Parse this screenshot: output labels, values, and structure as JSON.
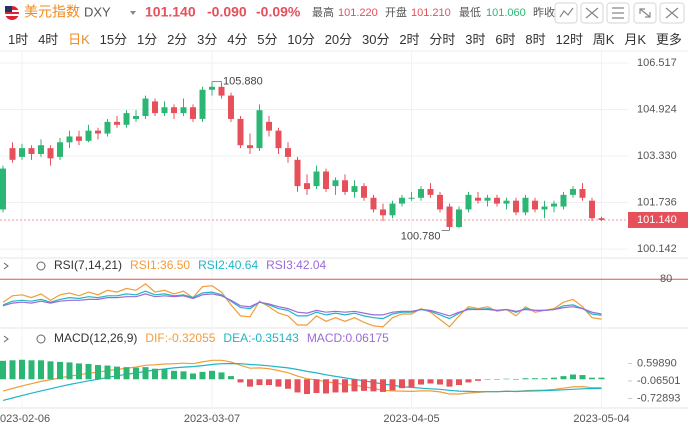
{
  "header": {
    "name": "美元指数",
    "symbol": "DXY",
    "price": "101.140",
    "change": "-0.090",
    "change_pct": "-0.09%",
    "high_label": "最高",
    "high": "101.220",
    "open_label": "开盘",
    "open": "101.210",
    "low_label": "最低",
    "low": "101.060",
    "prev_close_label": "昨收"
  },
  "toolbar": {
    "periods": [
      "1时",
      "4时",
      "日K",
      "15分",
      "1分",
      "2分",
      "3分",
      "4分",
      "5分",
      "10分",
      "20分",
      "30分",
      "2时",
      "分时",
      "3时",
      "6时",
      "8时",
      "12时",
      "周K",
      "月K"
    ],
    "selected": "日K",
    "more": "更多"
  },
  "chart_data": [
    {
      "type": "candlestick",
      "categories": [
        null,
        null,
        "2023-02-06",
        null,
        null,
        null,
        null,
        null,
        null,
        null,
        null,
        null,
        null,
        null,
        null,
        null,
        null,
        null,
        null,
        null,
        null,
        null,
        "2023-03-07",
        null,
        null,
        null,
        null,
        null,
        null,
        null,
        null,
        null,
        null,
        null,
        null,
        null,
        null,
        null,
        null,
        null,
        null,
        null,
        null,
        "2023-04-05",
        null,
        null,
        null,
        null,
        null,
        null,
        null,
        null,
        null,
        null,
        null,
        null,
        null,
        null,
        null,
        null,
        null,
        null,
        null,
        "2023-05-04"
      ],
      "open": [
        101.5,
        103.6,
        103.3,
        103.6,
        103.4,
        103.6,
        103.3,
        103.8,
        104.0,
        103.85,
        104.2,
        104.1,
        104.5,
        104.4,
        104.6,
        104.7,
        105.2,
        104.8,
        105.0,
        104.8,
        105.0,
        104.6,
        105.6,
        105.7,
        105.4,
        104.6,
        103.7,
        103.6,
        104.5,
        104.2,
        103.6,
        103.2,
        102.4,
        102.3,
        102.8,
        102.3,
        102.5,
        102.1,
        102.3,
        101.9,
        101.5,
        101.3,
        101.7,
        101.9,
        101.9,
        102.2,
        102.0,
        101.6,
        100.9,
        101.5,
        101.9,
        101.8,
        101.9,
        101.7,
        101.8,
        101.4,
        101.8,
        101.5,
        101.6,
        101.6,
        102.0,
        102.2,
        101.8,
        101.2
      ],
      "high": [
        103.0,
        103.8,
        103.75,
        103.7,
        103.9,
        103.7,
        103.95,
        104.2,
        104.2,
        104.4,
        104.3,
        104.6,
        104.7,
        104.9,
        104.9,
        105.4,
        105.3,
        105.2,
        105.1,
        105.3,
        105.1,
        105.7,
        105.88,
        105.85,
        105.5,
        104.7,
        104.1,
        105.1,
        104.7,
        104.3,
        103.8,
        103.3,
        102.7,
        103.0,
        102.9,
        102.6,
        102.7,
        102.5,
        102.4,
        102.0,
        101.7,
        101.8,
        102.0,
        102.1,
        102.3,
        102.4,
        102.1,
        101.7,
        101.6,
        102.1,
        102.1,
        102.0,
        102.0,
        101.9,
        101.9,
        102.0,
        101.9,
        101.8,
        101.8,
        102.1,
        102.3,
        102.4,
        101.9,
        101.25
      ],
      "low": [
        101.4,
        103.1,
        103.2,
        103.2,
        103.3,
        103.0,
        103.2,
        103.6,
        103.7,
        103.8,
        103.9,
        104.0,
        104.3,
        104.3,
        104.5,
        104.6,
        104.7,
        104.7,
        104.6,
        104.7,
        104.5,
        104.5,
        105.4,
        105.3,
        104.5,
        103.6,
        103.4,
        103.5,
        104.0,
        103.4,
        103.1,
        102.1,
        102.0,
        102.2,
        102.1,
        102.0,
        102.0,
        101.9,
        101.8,
        101.4,
        101.1,
        101.2,
        101.6,
        101.8,
        101.8,
        101.9,
        101.4,
        100.78,
        100.85,
        101.4,
        101.7,
        101.6,
        101.6,
        101.5,
        101.3,
        101.3,
        101.4,
        101.2,
        101.4,
        101.5,
        101.9,
        101.8,
        101.1,
        101.1
      ],
      "close": [
        102.9,
        103.2,
        103.6,
        103.4,
        103.7,
        103.25,
        103.8,
        104.0,
        103.85,
        104.2,
        104.1,
        104.5,
        104.4,
        104.8,
        104.7,
        105.3,
        104.8,
        105.0,
        104.8,
        105.0,
        104.6,
        105.6,
        105.7,
        105.4,
        104.6,
        103.7,
        103.6,
        104.9,
        104.2,
        103.6,
        103.3,
        102.3,
        102.2,
        102.8,
        102.2,
        102.5,
        102.1,
        102.3,
        101.9,
        101.5,
        101.3,
        101.7,
        101.9,
        101.9,
        102.2,
        102.0,
        101.5,
        100.9,
        101.5,
        102.0,
        101.8,
        101.9,
        101.7,
        101.8,
        101.4,
        101.9,
        101.5,
        101.6,
        101.7,
        102.0,
        102.2,
        101.9,
        101.2,
        101.14
      ],
      "up_color": "#2bb673",
      "down_color": "#e5505a",
      "ylim": [
        99.94,
        106.79
      ],
      "yticks": [
        106.517,
        104.924,
        {
          "value": 103.33,
          "label": "103.330"
        },
        101.736,
        100.142
      ],
      "annotations": [
        {
          "value": 105.88,
          "label": "105.880"
        },
        {
          "value": 100.78,
          "label": "100.780"
        },
        {
          "value": 101.14,
          "label": "101.140"
        }
      ],
      "grid": true
    },
    {
      "type": "line",
      "title": "RSI(7,14,21)",
      "series": [
        {
          "name": "RSI1:36.50",
          "color": "#f39c39",
          "values": [
            55,
            62,
            63,
            60,
            64,
            57,
            63,
            65,
            62,
            66,
            63,
            68,
            66,
            70,
            68,
            75,
            66,
            68,
            64,
            67,
            60,
            72,
            73,
            66,
            52,
            40,
            39,
            56,
            50,
            43,
            40,
            30,
            30,
            40,
            34,
            38,
            34,
            38,
            33,
            29,
            28,
            38,
            42,
            42,
            48,
            44,
            36,
            28,
            40,
            50,
            48,
            50,
            45,
            47,
            40,
            50,
            44,
            46,
            48,
            55,
            58,
            50,
            38,
            36.5
          ]
        },
        {
          "name": "RSI2:40.64",
          "color": "#1fb5c4",
          "values": [
            52,
            56,
            57,
            56,
            58,
            55,
            58,
            60,
            59,
            61,
            60,
            62,
            62,
            64,
            63,
            67,
            63,
            64,
            62,
            63,
            60,
            65,
            66,
            63,
            56,
            49,
            48,
            55,
            52,
            48,
            46,
            40,
            40,
            44,
            41,
            43,
            41,
            43,
            40,
            38,
            37,
            42,
            44,
            44,
            47,
            45,
            41,
            37,
            43,
            48,
            47,
            48,
            46,
            47,
            44,
            48,
            46,
            46,
            47,
            51,
            52,
            48,
            42,
            40.64
          ]
        },
        {
          "name": "RSI3:42.04",
          "color": "#9b6bd8",
          "values": [
            51,
            54,
            55,
            54,
            56,
            54,
            56,
            57,
            57,
            58,
            58,
            60,
            60,
            61,
            61,
            64,
            61,
            62,
            61,
            62,
            59,
            63,
            64,
            62,
            57,
            51,
            50,
            55,
            53,
            50,
            48,
            44,
            43,
            46,
            44,
            45,
            44,
            45,
            43,
            41,
            41,
            44,
            45,
            45,
            47,
            46,
            43,
            40,
            44,
            47,
            47,
            47,
            46,
            47,
            45,
            47,
            46,
            46,
            47,
            49,
            50,
            48,
            44,
            42.04
          ]
        }
      ],
      "ylim": [
        30,
        88
      ],
      "yticks": [
        80
      ],
      "ref_color": "#e5505a"
    },
    {
      "type": "macd",
      "title": "MACD(12,26,9)",
      "series": [
        {
          "name": "DIF:-0.32055",
          "color": "#f39c39",
          "values": [
            -0.45,
            -0.35,
            -0.25,
            -0.17,
            -0.08,
            -0.02,
            0.05,
            0.12,
            0.17,
            0.23,
            0.27,
            0.33,
            0.37,
            0.42,
            0.46,
            0.53,
            0.55,
            0.58,
            0.59,
            0.61,
            0.59,
            0.66,
            0.72,
            0.72,
            0.66,
            0.53,
            0.42,
            0.43,
            0.4,
            0.33,
            0.25,
            0.12,
            0.02,
            -0.02,
            -0.1,
            -0.14,
            -0.2,
            -0.23,
            -0.28,
            -0.35,
            -0.42,
            -0.44,
            -0.45,
            -0.46,
            -0.44,
            -0.44,
            -0.48,
            -0.56,
            -0.56,
            -0.52,
            -0.5,
            -0.47,
            -0.47,
            -0.45,
            -0.47,
            -0.43,
            -0.42,
            -0.41,
            -0.39,
            -0.34,
            -0.29,
            -0.28,
            -0.32,
            -0.32055
          ]
        },
        {
          "name": "DEA:-0.35143",
          "color": "#1fb5c4",
          "values": [
            -0.8,
            -0.71,
            -0.62,
            -0.53,
            -0.44,
            -0.36,
            -0.28,
            -0.2,
            -0.13,
            -0.06,
            0.0,
            0.07,
            0.13,
            0.19,
            0.24,
            0.3,
            0.35,
            0.39,
            0.43,
            0.46,
            0.48,
            0.52,
            0.56,
            0.59,
            0.6,
            0.59,
            0.56,
            0.54,
            0.51,
            0.47,
            0.43,
            0.37,
            0.3,
            0.24,
            0.17,
            0.11,
            0.05,
            0.0,
            -0.06,
            -0.12,
            -0.18,
            -0.23,
            -0.28,
            -0.31,
            -0.34,
            -0.36,
            -0.38,
            -0.42,
            -0.45,
            -0.46,
            -0.47,
            -0.47,
            -0.47,
            -0.46,
            -0.46,
            -0.45,
            -0.44,
            -0.43,
            -0.42,
            -0.4,
            -0.38,
            -0.36,
            -0.35,
            -0.35143
          ]
        },
        {
          "name": "MACD:0.06175",
          "color": "#9b6bd8",
          "up_color": "#2bb673",
          "down_color": "#e5505a",
          "values": [
            0.7,
            0.72,
            0.74,
            0.72,
            0.72,
            0.68,
            0.66,
            0.64,
            0.6,
            0.58,
            0.54,
            0.52,
            0.48,
            0.46,
            0.44,
            0.46,
            0.4,
            0.38,
            0.32,
            0.3,
            0.22,
            0.28,
            0.32,
            0.26,
            0.12,
            -0.12,
            -0.28,
            -0.22,
            -0.22,
            -0.28,
            -0.36,
            -0.5,
            -0.56,
            -0.52,
            -0.54,
            -0.5,
            -0.5,
            -0.46,
            -0.44,
            -0.46,
            -0.48,
            -0.42,
            -0.34,
            -0.3,
            -0.2,
            -0.16,
            -0.2,
            -0.28,
            -0.22,
            -0.12,
            -0.06,
            0.0,
            0.0,
            0.02,
            -0.02,
            0.04,
            0.04,
            0.04,
            0.06,
            0.12,
            0.18,
            0.16,
            0.06,
            0.06175
          ]
        }
      ],
      "ylim": [
        -1.09,
        1.3
      ],
      "yticks": [
        {
          "value": 0.5989,
          "label": "0.59890"
        },
        -0.06501,
        -0.72893
      ]
    }
  ]
}
